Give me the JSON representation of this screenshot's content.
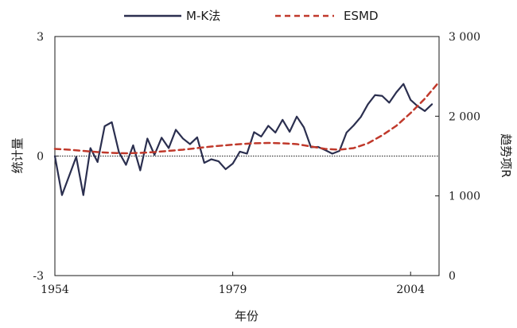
{
  "chart_data": {
    "type": "line",
    "xlabel": "年份",
    "ylabel": "统计量",
    "y2label": "趋势项R",
    "x_ticks": [
      1954,
      1979,
      2004
    ],
    "xlim": [
      1954,
      2008
    ],
    "y_ticks": [
      -3,
      0,
      3
    ],
    "y_tick_labels": [
      "-3",
      "0",
      "3"
    ],
    "ylim": [
      -3,
      3
    ],
    "y2_ticks": [
      0,
      1000,
      2000,
      3000
    ],
    "y2_tick_labels": [
      "0",
      "1 000",
      "2 000",
      "3 000"
    ],
    "y2lim": [
      0,
      3000
    ],
    "reference_line": {
      "y": 0,
      "style": "dotted"
    },
    "legend_position": "top",
    "series": [
      {
        "name": "M-K法",
        "axis": "left",
        "color": "#2b2f4f",
        "style": "solid",
        "x": [
          1954,
          1955,
          1956,
          1957,
          1958,
          1959,
          1960,
          1961,
          1962,
          1963,
          1964,
          1965,
          1966,
          1967,
          1968,
          1969,
          1970,
          1971,
          1972,
          1973,
          1974,
          1975,
          1976,
          1977,
          1978,
          1979,
          1980,
          1981,
          1982,
          1983,
          1984,
          1985,
          1986,
          1987,
          1988,
          1989,
          1990,
          1991,
          1992,
          1993,
          1994,
          1995,
          1996,
          1997,
          1998,
          1999,
          2000,
          2001,
          2002,
          2003,
          2004,
          2005,
          2006,
          2007
        ],
        "y": [
          0.0,
          -0.98,
          -0.5,
          -0.02,
          -0.98,
          0.2,
          -0.15,
          0.75,
          0.85,
          0.1,
          -0.22,
          0.27,
          -0.36,
          0.44,
          0.03,
          0.46,
          0.2,
          0.66,
          0.44,
          0.3,
          0.47,
          -0.17,
          -0.08,
          -0.13,
          -0.33,
          -0.19,
          0.11,
          0.06,
          0.6,
          0.49,
          0.76,
          0.59,
          0.91,
          0.61,
          0.99,
          0.72,
          0.22,
          0.23,
          0.15,
          0.06,
          0.13,
          0.59,
          0.77,
          0.98,
          1.3,
          1.53,
          1.51,
          1.34,
          1.6,
          1.81,
          1.41,
          1.25,
          1.13,
          1.3
        ]
      },
      {
        "name": "ESMD",
        "axis": "right",
        "color": "#c0392b",
        "style": "dashed",
        "x": [
          1954,
          1956,
          1958,
          1960,
          1962,
          1964,
          1966,
          1968,
          1970,
          1972,
          1974,
          1976,
          1978,
          1980,
          1982,
          1984,
          1986,
          1988,
          1990,
          1992,
          1994,
          1996,
          1998,
          2000,
          2002,
          2004,
          2006,
          2008
        ],
        "y": [
          1590,
          1580,
          1565,
          1550,
          1540,
          1535,
          1540,
          1550,
          1565,
          1580,
          1600,
          1620,
          1635,
          1650,
          1660,
          1665,
          1660,
          1650,
          1620,
          1590,
          1580,
          1600,
          1660,
          1760,
          1880,
          2040,
          2220,
          2430
        ]
      }
    ]
  }
}
